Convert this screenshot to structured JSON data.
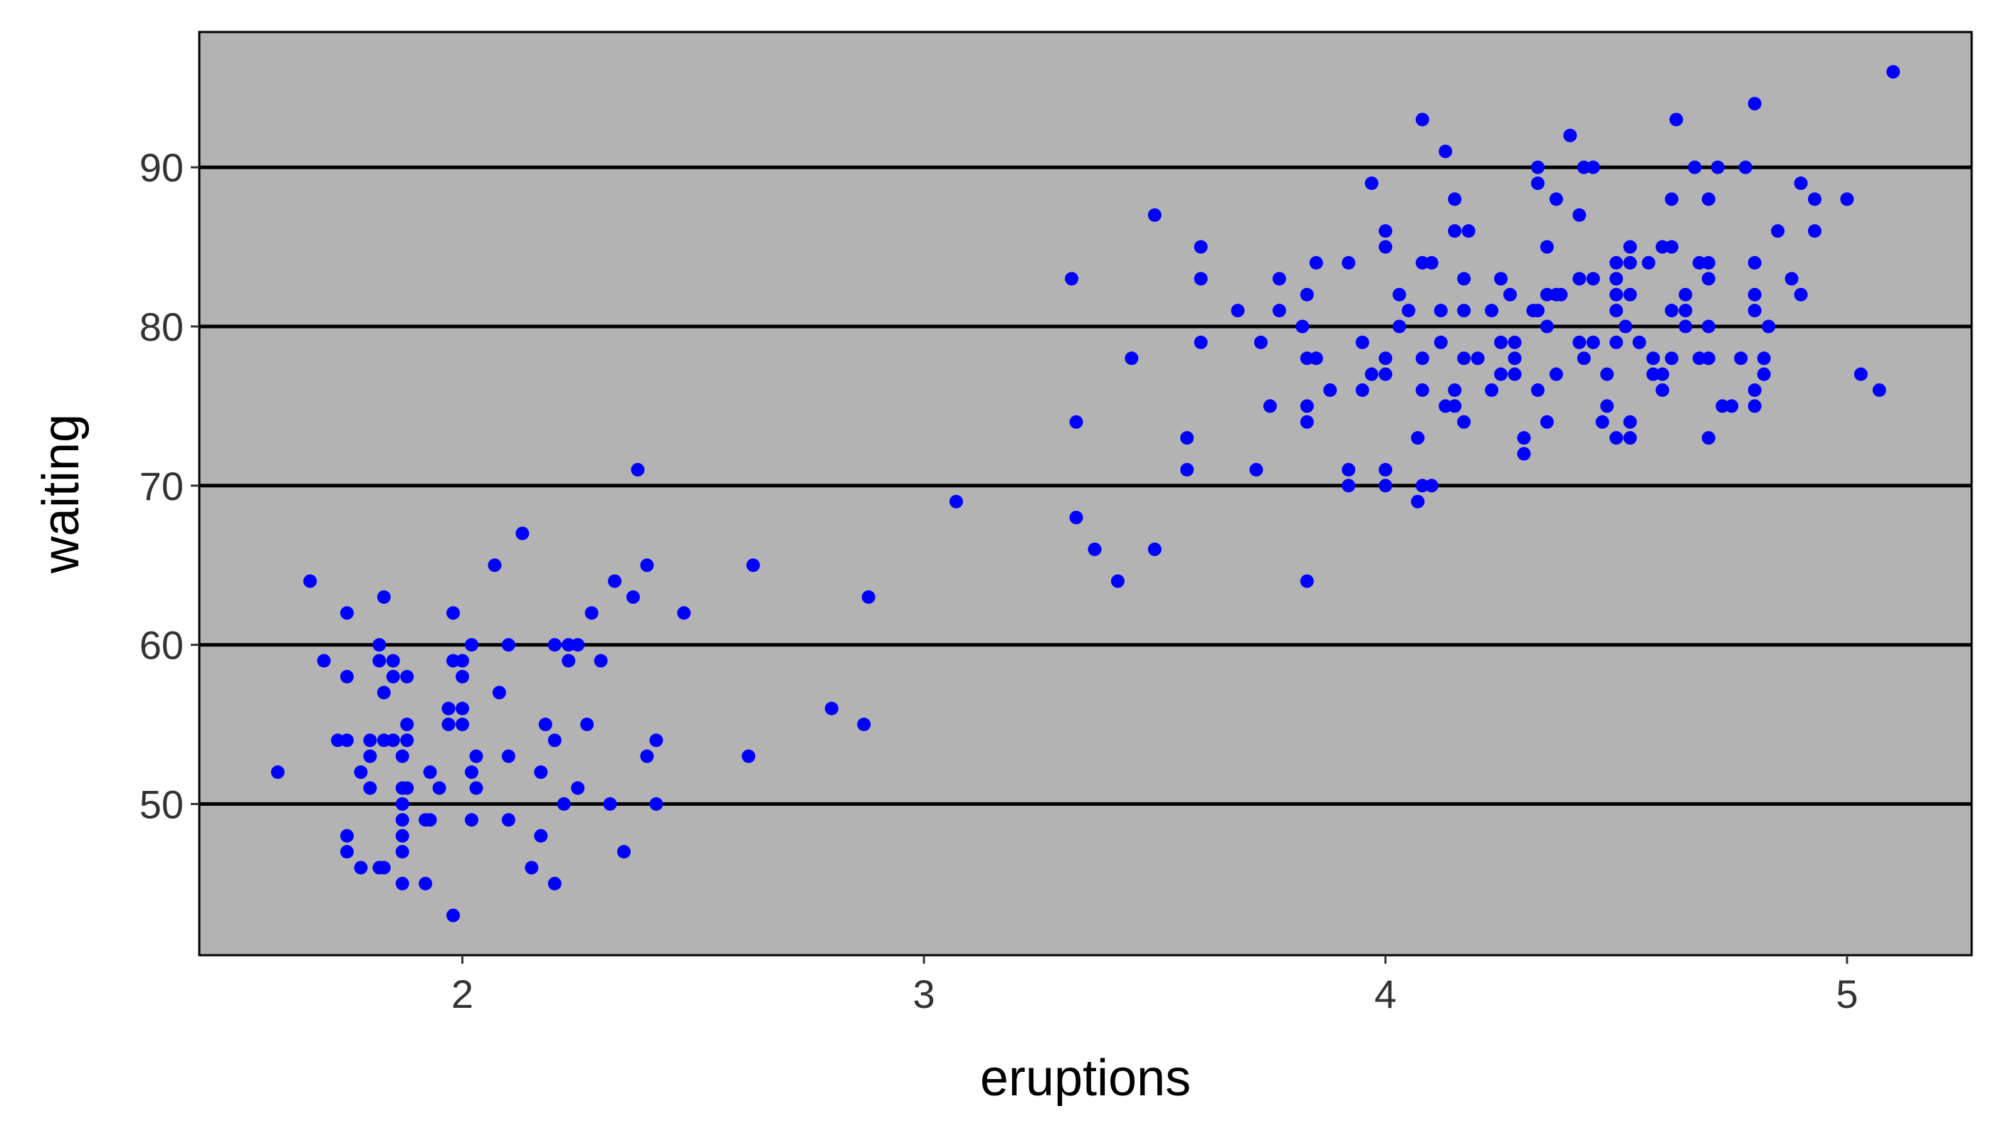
{
  "chart_data": {
    "type": "scatter",
    "title": "",
    "xlabel": "eruptions",
    "ylabel": "waiting",
    "xlim": [
      1.43,
      5.27
    ],
    "ylim": [
      40.5,
      98.5
    ],
    "x_ticks": [
      2,
      3,
      4,
      5
    ],
    "y_ticks": [
      50,
      60,
      70,
      80,
      90
    ],
    "grid": "horizontal major lines only",
    "legend": "none",
    "colors": {
      "panel": "#b3b3b3",
      "gridline": "#000000",
      "points": "#0000ff",
      "axis_text": "#333333"
    },
    "series": [
      {
        "points": [
          [
            1.6,
            52
          ],
          [
            1.67,
            64
          ],
          [
            1.7,
            59
          ],
          [
            1.73,
            54
          ],
          [
            1.75,
            54
          ],
          [
            1.75,
            48
          ],
          [
            1.75,
            47
          ],
          [
            1.75,
            58
          ],
          [
            1.75,
            62
          ],
          [
            1.78,
            46
          ],
          [
            1.78,
            52
          ],
          [
            1.8,
            53
          ],
          [
            1.8,
            51
          ],
          [
            1.8,
            54
          ],
          [
            1.82,
            46
          ],
          [
            1.82,
            60
          ],
          [
            1.82,
            59
          ],
          [
            1.83,
            46
          ],
          [
            1.83,
            54
          ],
          [
            1.83,
            57
          ],
          [
            1.83,
            63
          ],
          [
            1.85,
            54
          ],
          [
            1.85,
            59
          ],
          [
            1.85,
            58
          ],
          [
            1.87,
            53
          ],
          [
            1.87,
            51
          ],
          [
            1.87,
            50
          ],
          [
            1.87,
            49
          ],
          [
            1.87,
            48
          ],
          [
            1.87,
            47
          ],
          [
            1.87,
            45
          ],
          [
            1.88,
            55
          ],
          [
            1.88,
            54
          ],
          [
            1.88,
            51
          ],
          [
            1.88,
            58
          ],
          [
            1.92,
            49
          ],
          [
            1.92,
            45
          ],
          [
            1.93,
            52
          ],
          [
            1.93,
            49
          ],
          [
            1.95,
            51
          ],
          [
            1.97,
            56
          ],
          [
            1.97,
            55
          ],
          [
            1.98,
            62
          ],
          [
            1.98,
            59
          ],
          [
            1.98,
            43
          ],
          [
            2.0,
            59
          ],
          [
            2.0,
            58
          ],
          [
            2.0,
            56
          ],
          [
            2.0,
            55
          ],
          [
            2.02,
            60
          ],
          [
            2.02,
            52
          ],
          [
            2.02,
            49
          ],
          [
            2.03,
            53
          ],
          [
            2.03,
            51
          ],
          [
            2.07,
            65
          ],
          [
            2.08,
            57
          ],
          [
            2.1,
            60
          ],
          [
            2.1,
            53
          ],
          [
            2.1,
            49
          ],
          [
            2.13,
            67
          ],
          [
            2.15,
            46
          ],
          [
            2.17,
            52
          ],
          [
            2.17,
            48
          ],
          [
            2.18,
            55
          ],
          [
            2.2,
            60
          ],
          [
            2.2,
            54
          ],
          [
            2.2,
            45
          ],
          [
            2.22,
            50
          ],
          [
            2.23,
            59
          ],
          [
            2.23,
            60
          ],
          [
            2.25,
            60
          ],
          [
            2.25,
            51
          ],
          [
            2.27,
            55
          ],
          [
            2.28,
            62
          ],
          [
            2.3,
            59
          ],
          [
            2.32,
            50
          ],
          [
            2.33,
            64
          ],
          [
            2.35,
            47
          ],
          [
            2.37,
            63
          ],
          [
            2.38,
            71
          ],
          [
            2.4,
            65
          ],
          [
            2.4,
            53
          ],
          [
            2.42,
            54
          ],
          [
            2.42,
            50
          ],
          [
            2.48,
            62
          ],
          [
            2.62,
            53
          ],
          [
            2.63,
            65
          ],
          [
            2.8,
            56
          ],
          [
            2.87,
            55
          ],
          [
            2.88,
            63
          ],
          [
            3.07,
            69
          ],
          [
            3.32,
            83
          ],
          [
            3.33,
            74
          ],
          [
            3.33,
            68
          ],
          [
            3.37,
            66
          ],
          [
            3.42,
            64
          ],
          [
            3.45,
            78
          ],
          [
            3.5,
            87
          ],
          [
            3.5,
            66
          ],
          [
            3.57,
            73
          ],
          [
            3.57,
            71
          ],
          [
            3.6,
            85
          ],
          [
            3.6,
            83
          ],
          [
            3.6,
            79
          ],
          [
            3.68,
            81
          ],
          [
            3.72,
            71
          ],
          [
            3.73,
            79
          ],
          [
            3.75,
            75
          ],
          [
            3.77,
            83
          ],
          [
            3.77,
            81
          ],
          [
            3.82,
            80
          ],
          [
            3.83,
            82
          ],
          [
            3.83,
            78
          ],
          [
            3.83,
            75
          ],
          [
            3.83,
            74
          ],
          [
            3.83,
            64
          ],
          [
            3.85,
            84
          ],
          [
            3.85,
            78
          ],
          [
            3.88,
            76
          ],
          [
            3.92,
            84
          ],
          [
            3.92,
            71
          ],
          [
            3.92,
            70
          ],
          [
            3.95,
            79
          ],
          [
            3.95,
            76
          ],
          [
            3.97,
            89
          ],
          [
            3.97,
            77
          ],
          [
            4.0,
            86
          ],
          [
            4.0,
            85
          ],
          [
            4.0,
            78
          ],
          [
            4.0,
            77
          ],
          [
            4.0,
            71
          ],
          [
            4.0,
            70
          ],
          [
            4.03,
            82
          ],
          [
            4.03,
            80
          ],
          [
            4.05,
            81
          ],
          [
            4.07,
            73
          ],
          [
            4.07,
            69
          ],
          [
            4.08,
            93
          ],
          [
            4.08,
            84
          ],
          [
            4.08,
            78
          ],
          [
            4.08,
            76
          ],
          [
            4.08,
            70
          ],
          [
            4.1,
            84
          ],
          [
            4.1,
            70
          ],
          [
            4.12,
            81
          ],
          [
            4.12,
            79
          ],
          [
            4.13,
            91
          ],
          [
            4.13,
            75
          ],
          [
            4.15,
            88
          ],
          [
            4.15,
            86
          ],
          [
            4.15,
            76
          ],
          [
            4.15,
            75
          ],
          [
            4.17,
            83
          ],
          [
            4.17,
            81
          ],
          [
            4.17,
            78
          ],
          [
            4.17,
            74
          ],
          [
            4.18,
            86
          ],
          [
            4.2,
            78
          ],
          [
            4.23,
            81
          ],
          [
            4.23,
            76
          ],
          [
            4.25,
            83
          ],
          [
            4.25,
            79
          ],
          [
            4.25,
            77
          ],
          [
            4.27,
            82
          ],
          [
            4.28,
            79
          ],
          [
            4.28,
            78
          ],
          [
            4.28,
            77
          ],
          [
            4.3,
            73
          ],
          [
            4.3,
            72
          ],
          [
            4.32,
            81
          ],
          [
            4.33,
            90
          ],
          [
            4.33,
            89
          ],
          [
            4.33,
            81
          ],
          [
            4.33,
            76
          ],
          [
            4.35,
            85
          ],
          [
            4.35,
            82
          ],
          [
            4.35,
            80
          ],
          [
            4.35,
            74
          ],
          [
            4.37,
            88
          ],
          [
            4.37,
            82
          ],
          [
            4.37,
            77
          ],
          [
            4.38,
            82
          ],
          [
            4.4,
            92
          ],
          [
            4.42,
            87
          ],
          [
            4.42,
            83
          ],
          [
            4.42,
            79
          ],
          [
            4.43,
            90
          ],
          [
            4.43,
            78
          ],
          [
            4.45,
            90
          ],
          [
            4.45,
            83
          ],
          [
            4.45,
            79
          ],
          [
            4.47,
            74
          ],
          [
            4.48,
            77
          ],
          [
            4.48,
            75
          ],
          [
            4.5,
            84
          ],
          [
            4.5,
            83
          ],
          [
            4.5,
            82
          ],
          [
            4.5,
            81
          ],
          [
            4.5,
            79
          ],
          [
            4.5,
            73
          ],
          [
            4.52,
            80
          ],
          [
            4.53,
            85
          ],
          [
            4.53,
            84
          ],
          [
            4.53,
            82
          ],
          [
            4.53,
            74
          ],
          [
            4.53,
            73
          ],
          [
            4.55,
            79
          ],
          [
            4.57,
            84
          ],
          [
            4.58,
            78
          ],
          [
            4.58,
            77
          ],
          [
            4.6,
            85
          ],
          [
            4.6,
            77
          ],
          [
            4.6,
            76
          ],
          [
            4.62,
            85
          ],
          [
            4.62,
            88
          ],
          [
            4.62,
            81
          ],
          [
            4.62,
            78
          ],
          [
            4.63,
            93
          ],
          [
            4.65,
            82
          ],
          [
            4.65,
            81
          ],
          [
            4.65,
            80
          ],
          [
            4.67,
            90
          ],
          [
            4.68,
            84
          ],
          [
            4.68,
            78
          ],
          [
            4.7,
            88
          ],
          [
            4.7,
            84
          ],
          [
            4.7,
            83
          ],
          [
            4.7,
            80
          ],
          [
            4.7,
            78
          ],
          [
            4.7,
            73
          ],
          [
            4.72,
            90
          ],
          [
            4.73,
            75
          ],
          [
            4.75,
            75
          ],
          [
            4.77,
            78
          ],
          [
            4.78,
            90
          ],
          [
            4.8,
            94
          ],
          [
            4.8,
            84
          ],
          [
            4.8,
            82
          ],
          [
            4.8,
            81
          ],
          [
            4.8,
            76
          ],
          [
            4.8,
            75
          ],
          [
            4.82,
            78
          ],
          [
            4.82,
            77
          ],
          [
            4.83,
            80
          ],
          [
            4.85,
            86
          ],
          [
            4.88,
            83
          ],
          [
            4.9,
            89
          ],
          [
            4.9,
            82
          ],
          [
            4.93,
            88
          ],
          [
            4.93,
            86
          ],
          [
            5.0,
            88
          ],
          [
            5.03,
            77
          ],
          [
            5.07,
            76
          ],
          [
            5.1,
            96
          ]
        ]
      }
    ]
  }
}
